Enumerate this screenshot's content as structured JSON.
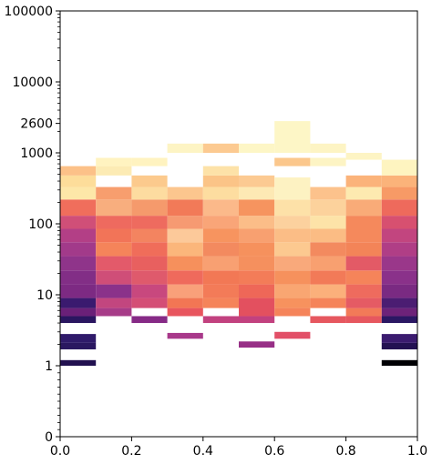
{
  "chart_data": {
    "type": "heatmap",
    "title": "",
    "xlabel": "",
    "ylabel": "",
    "xlim": [
      0.0,
      1.0
    ],
    "ylim": [
      0,
      100000
    ],
    "y_scale": "log-like (0 at bottom, custom ticks)",
    "colormap": "magma",
    "x_ticks": [
      "0.0",
      "0.2",
      "0.4",
      "0.6",
      "0.8",
      "1.0"
    ],
    "y_ticks": [
      "0",
      "1",
      "10",
      "100",
      "1000",
      "2600",
      "10000",
      "100000"
    ],
    "x_bins": [
      0.0,
      0.1,
      0.2,
      0.3,
      0.4,
      0.5,
      0.6,
      0.7,
      0.8,
      0.9,
      1.0
    ],
    "cells": [
      {
        "x0": 0.0,
        "x1": 0.1,
        "y0": 1.0,
        "y1": 1.2,
        "color": "#221150"
      },
      {
        "x0": 0.0,
        "x1": 0.1,
        "y0": 1.7,
        "y1": 2.1,
        "color": "#2a1760"
      },
      {
        "x0": 0.0,
        "x1": 0.1,
        "y0": 2.1,
        "y1": 2.8,
        "color": "#2f1a6a"
      },
      {
        "x0": 0.0,
        "x1": 0.1,
        "y0": 4.0,
        "y1": 5.0,
        "color": "#2a1660"
      },
      {
        "x0": 0.0,
        "x1": 0.1,
        "y0": 5.0,
        "y1": 6.5,
        "color": "#6a2078"
      },
      {
        "x0": 0.0,
        "x1": 0.1,
        "y0": 6.5,
        "y1": 9.0,
        "color": "#3a1a6f"
      },
      {
        "x0": 0.0,
        "x1": 0.1,
        "y0": 9.0,
        "y1": 14,
        "color": "#7d2a83"
      },
      {
        "x0": 0.0,
        "x1": 0.1,
        "y0": 14,
        "y1": 22,
        "color": "#822e86"
      },
      {
        "x0": 0.0,
        "x1": 0.1,
        "y0": 22,
        "y1": 35,
        "color": "#8f348a"
      },
      {
        "x0": 0.0,
        "x1": 0.1,
        "y0": 35,
        "y1": 55,
        "color": "#a23a8a"
      },
      {
        "x0": 0.0,
        "x1": 0.1,
        "y0": 55,
        "y1": 85,
        "color": "#b33f86"
      },
      {
        "x0": 0.0,
        "x1": 0.1,
        "y0": 85,
        "y1": 130,
        "color": "#d04f78"
      },
      {
        "x0": 0.0,
        "x1": 0.1,
        "y0": 130,
        "y1": 220,
        "color": "#f06e5c"
      },
      {
        "x0": 0.0,
        "x1": 0.1,
        "y0": 220,
        "y1": 330,
        "color": "#fde7a8"
      },
      {
        "x0": 0.0,
        "x1": 0.1,
        "y0": 330,
        "y1": 480,
        "color": "#fddd9a"
      },
      {
        "x0": 0.0,
        "x1": 0.1,
        "y0": 480,
        "y1": 650,
        "color": "#fcc188"
      },
      {
        "x0": 0.1,
        "x1": 0.2,
        "y0": 5.0,
        "y1": 6.5,
        "color": "#a73c88"
      },
      {
        "x0": 0.1,
        "x1": 0.2,
        "y0": 6.5,
        "y1": 9.0,
        "color": "#c2467f"
      },
      {
        "x0": 0.1,
        "x1": 0.2,
        "y0": 9.0,
        "y1": 14,
        "color": "#8a328a"
      },
      {
        "x0": 0.1,
        "x1": 0.2,
        "y0": 14,
        "y1": 22,
        "color": "#cf4e78"
      },
      {
        "x0": 0.1,
        "x1": 0.2,
        "y0": 22,
        "y1": 35,
        "color": "#e35a6a"
      },
      {
        "x0": 0.1,
        "x1": 0.2,
        "y0": 35,
        "y1": 55,
        "color": "#f5845a"
      },
      {
        "x0": 0.1,
        "x1": 0.2,
        "y0": 55,
        "y1": 85,
        "color": "#f27458"
      },
      {
        "x0": 0.1,
        "x1": 0.2,
        "y0": 85,
        "y1": 130,
        "color": "#ee6a5f"
      },
      {
        "x0": 0.1,
        "x1": 0.2,
        "y0": 130,
        "y1": 220,
        "color": "#f8ae7e"
      },
      {
        "x0": 0.1,
        "x1": 0.2,
        "y0": 220,
        "y1": 330,
        "color": "#f79e6e"
      },
      {
        "x0": 0.1,
        "x1": 0.2,
        "y0": 480,
        "y1": 650,
        "color": "#fcebb4"
      },
      {
        "x0": 0.1,
        "x1": 0.2,
        "y0": 650,
        "y1": 850,
        "color": "#fff3c0"
      },
      {
        "x0": 0.2,
        "x1": 0.3,
        "y0": 4.0,
        "y1": 5.0,
        "color": "#862a86"
      },
      {
        "x0": 0.2,
        "x1": 0.3,
        "y0": 6.5,
        "y1": 9.0,
        "color": "#d44e76"
      },
      {
        "x0": 0.2,
        "x1": 0.3,
        "y0": 9.0,
        "y1": 14,
        "color": "#c8487e"
      },
      {
        "x0": 0.2,
        "x1": 0.3,
        "y0": 14,
        "y1": 22,
        "color": "#df5a6c"
      },
      {
        "x0": 0.2,
        "x1": 0.3,
        "y0": 22,
        "y1": 35,
        "color": "#e8605f"
      },
      {
        "x0": 0.2,
        "x1": 0.3,
        "y0": 35,
        "y1": 55,
        "color": "#f06d5a"
      },
      {
        "x0": 0.2,
        "x1": 0.3,
        "y0": 55,
        "y1": 85,
        "color": "#f38460"
      },
      {
        "x0": 0.2,
        "x1": 0.3,
        "y0": 85,
        "y1": 130,
        "color": "#ee6b5f"
      },
      {
        "x0": 0.2,
        "x1": 0.3,
        "y0": 130,
        "y1": 220,
        "color": "#f59a6c"
      },
      {
        "x0": 0.2,
        "x1": 0.3,
        "y0": 220,
        "y1": 330,
        "color": "#fddca0"
      },
      {
        "x0": 0.2,
        "x1": 0.3,
        "y0": 330,
        "y1": 480,
        "color": "#fcca8d"
      },
      {
        "x0": 0.2,
        "x1": 0.3,
        "y0": 650,
        "y1": 850,
        "color": "#fff3c0"
      },
      {
        "x0": 0.3,
        "x1": 0.4,
        "y0": 2.4,
        "y1": 2.9,
        "color": "#a8388a"
      },
      {
        "x0": 0.3,
        "x1": 0.4,
        "y0": 5.0,
        "y1": 6.5,
        "color": "#e8555e"
      },
      {
        "x0": 0.3,
        "x1": 0.4,
        "y0": 6.5,
        "y1": 9.0,
        "color": "#f27654"
      },
      {
        "x0": 0.3,
        "x1": 0.4,
        "y0": 9.0,
        "y1": 14,
        "color": "#f9a07a"
      },
      {
        "x0": 0.3,
        "x1": 0.4,
        "y0": 14,
        "y1": 22,
        "color": "#ef6a5c"
      },
      {
        "x0": 0.3,
        "x1": 0.4,
        "y0": 22,
        "y1": 35,
        "color": "#f6905c"
      },
      {
        "x0": 0.3,
        "x1": 0.4,
        "y0": 35,
        "y1": 55,
        "color": "#fbb67b"
      },
      {
        "x0": 0.3,
        "x1": 0.4,
        "y0": 55,
        "y1": 85,
        "color": "#fcc99a"
      },
      {
        "x0": 0.3,
        "x1": 0.4,
        "y0": 85,
        "y1": 130,
        "color": "#f69a72"
      },
      {
        "x0": 0.3,
        "x1": 0.4,
        "y0": 130,
        "y1": 220,
        "color": "#f27a58"
      },
      {
        "x0": 0.3,
        "x1": 0.4,
        "y0": 220,
        "y1": 330,
        "color": "#fcc68e"
      },
      {
        "x0": 0.3,
        "x1": 0.4,
        "y0": 1000,
        "y1": 1350,
        "color": "#fdf4c4"
      },
      {
        "x0": 0.4,
        "x1": 0.5,
        "y0": 4.0,
        "y1": 5.0,
        "color": "#c2417f"
      },
      {
        "x0": 0.4,
        "x1": 0.5,
        "y0": 6.5,
        "y1": 9.0,
        "color": "#f5845a"
      },
      {
        "x0": 0.4,
        "x1": 0.5,
        "y0": 9.0,
        "y1": 14,
        "color": "#f37b58"
      },
      {
        "x0": 0.4,
        "x1": 0.5,
        "y0": 14,
        "y1": 22,
        "color": "#f27855"
      },
      {
        "x0": 0.4,
        "x1": 0.5,
        "y0": 22,
        "y1": 35,
        "color": "#f8a072"
      },
      {
        "x0": 0.4,
        "x1": 0.5,
        "y0": 35,
        "y1": 55,
        "color": "#f38a5f"
      },
      {
        "x0": 0.4,
        "x1": 0.5,
        "y0": 55,
        "y1": 85,
        "color": "#f7945f"
      },
      {
        "x0": 0.4,
        "x1": 0.5,
        "y0": 85,
        "y1": 130,
        "color": "#f9a578"
      },
      {
        "x0": 0.4,
        "x1": 0.5,
        "y0": 130,
        "y1": 220,
        "color": "#fbb98a"
      },
      {
        "x0": 0.4,
        "x1": 0.5,
        "y0": 220,
        "y1": 330,
        "color": "#fddda0"
      },
      {
        "x0": 0.4,
        "x1": 0.5,
        "y0": 330,
        "y1": 480,
        "color": "#fbc487"
      },
      {
        "x0": 0.4,
        "x1": 0.5,
        "y0": 480,
        "y1": 650,
        "color": "#fde2a8"
      },
      {
        "x0": 0.4,
        "x1": 0.5,
        "y0": 1000,
        "y1": 1350,
        "color": "#fcca91"
      },
      {
        "x0": 0.5,
        "x1": 0.6,
        "y0": 1.8,
        "y1": 2.2,
        "color": "#972f86"
      },
      {
        "x0": 0.5,
        "x1": 0.6,
        "y0": 4.0,
        "y1": 5.0,
        "color": "#c2417f"
      },
      {
        "x0": 0.5,
        "x1": 0.6,
        "y0": 5.0,
        "y1": 9.0,
        "color": "#e3505f"
      },
      {
        "x0": 0.5,
        "x1": 0.6,
        "y0": 9.0,
        "y1": 14,
        "color": "#ee6758"
      },
      {
        "x0": 0.5,
        "x1": 0.6,
        "y0": 14,
        "y1": 22,
        "color": "#f37c58"
      },
      {
        "x0": 0.5,
        "x1": 0.6,
        "y0": 22,
        "y1": 35,
        "color": "#f5905e"
      },
      {
        "x0": 0.5,
        "x1": 0.6,
        "y0": 35,
        "y1": 55,
        "color": "#f6915d"
      },
      {
        "x0": 0.5,
        "x1": 0.6,
        "y0": 55,
        "y1": 85,
        "color": "#f8a070"
      },
      {
        "x0": 0.5,
        "x1": 0.6,
        "y0": 85,
        "y1": 130,
        "color": "#fbbd88"
      },
      {
        "x0": 0.5,
        "x1": 0.6,
        "y0": 130,
        "y1": 220,
        "color": "#f6945f"
      },
      {
        "x0": 0.5,
        "x1": 0.6,
        "y0": 220,
        "y1": 330,
        "color": "#fde9b4"
      },
      {
        "x0": 0.5,
        "x1": 0.6,
        "y0": 330,
        "y1": 480,
        "color": "#fcca92"
      },
      {
        "x0": 0.5,
        "x1": 0.6,
        "y0": 1000,
        "y1": 1350,
        "color": "#fdf6c6"
      },
      {
        "x0": 0.6,
        "x1": 0.7,
        "y0": 2.4,
        "y1": 3.0,
        "color": "#e24f67"
      },
      {
        "x0": 0.6,
        "x1": 0.7,
        "y0": 5.0,
        "y1": 6.5,
        "color": "#f5845a"
      },
      {
        "x0": 0.6,
        "x1": 0.7,
        "y0": 6.5,
        "y1": 9.0,
        "color": "#f7925e"
      },
      {
        "x0": 0.6,
        "x1": 0.7,
        "y0": 9.0,
        "y1": 14,
        "color": "#f9a672"
      },
      {
        "x0": 0.6,
        "x1": 0.7,
        "y0": 14,
        "y1": 22,
        "color": "#f6915d"
      },
      {
        "x0": 0.6,
        "x1": 0.7,
        "y0": 22,
        "y1": 35,
        "color": "#f9a97b"
      },
      {
        "x0": 0.6,
        "x1": 0.7,
        "y0": 35,
        "y1": 55,
        "color": "#fcc990"
      },
      {
        "x0": 0.6,
        "x1": 0.7,
        "y0": 55,
        "y1": 85,
        "color": "#fbbd86"
      },
      {
        "x0": 0.6,
        "x1": 0.7,
        "y0": 85,
        "y1": 130,
        "color": "#fcd19e"
      },
      {
        "x0": 0.6,
        "x1": 0.7,
        "y0": 130,
        "y1": 220,
        "color": "#fde1a8"
      },
      {
        "x0": 0.6,
        "x1": 0.7,
        "y0": 220,
        "y1": 450,
        "color": "#fdf2c2"
      },
      {
        "x0": 0.6,
        "x1": 0.7,
        "y0": 650,
        "y1": 850,
        "color": "#fbc78c"
      },
      {
        "x0": 0.6,
        "x1": 0.7,
        "y0": 1000,
        "y1": 2800,
        "color": "#fdf6c6"
      },
      {
        "x0": 0.7,
        "x1": 0.8,
        "y0": 4.0,
        "y1": 5.0,
        "color": "#e6575f"
      },
      {
        "x0": 0.7,
        "x1": 0.8,
        "y0": 6.5,
        "y1": 9.0,
        "color": "#f5845a"
      },
      {
        "x0": 0.7,
        "x1": 0.8,
        "y0": 9.0,
        "y1": 14,
        "color": "#fbb07b"
      },
      {
        "x0": 0.7,
        "x1": 0.8,
        "y0": 14,
        "y1": 22,
        "color": "#f27a58"
      },
      {
        "x0": 0.7,
        "x1": 0.8,
        "y0": 22,
        "y1": 35,
        "color": "#f8a070"
      },
      {
        "x0": 0.7,
        "x1": 0.8,
        "y0": 35,
        "y1": 55,
        "color": "#f38a5f"
      },
      {
        "x0": 0.7,
        "x1": 0.8,
        "y0": 55,
        "y1": 85,
        "color": "#fbbc84"
      },
      {
        "x0": 0.7,
        "x1": 0.8,
        "y0": 85,
        "y1": 130,
        "color": "#fde3a8"
      },
      {
        "x0": 0.7,
        "x1": 0.8,
        "y0": 130,
        "y1": 220,
        "color": "#fcd29c"
      },
      {
        "x0": 0.7,
        "x1": 0.8,
        "y0": 220,
        "y1": 330,
        "color": "#fcc28c"
      },
      {
        "x0": 0.7,
        "x1": 0.8,
        "y0": 650,
        "y1": 850,
        "color": "#fdf4c4"
      },
      {
        "x0": 0.7,
        "x1": 0.8,
        "y0": 1000,
        "y1": 1350,
        "color": "#fdf4c4"
      },
      {
        "x0": 0.8,
        "x1": 0.9,
        "y0": 4.0,
        "y1": 5.0,
        "color": "#e6575f"
      },
      {
        "x0": 0.8,
        "x1": 0.9,
        "y0": 5.0,
        "y1": 6.5,
        "color": "#f27a58"
      },
      {
        "x0": 0.8,
        "x1": 0.9,
        "y0": 6.5,
        "y1": 9.0,
        "color": "#e55b64"
      },
      {
        "x0": 0.8,
        "x1": 0.9,
        "y0": 9.0,
        "y1": 14,
        "color": "#ee6b5e"
      },
      {
        "x0": 0.8,
        "x1": 0.9,
        "y0": 14,
        "y1": 22,
        "color": "#f5845a"
      },
      {
        "x0": 0.8,
        "x1": 0.9,
        "y0": 22,
        "y1": 35,
        "color": "#e35a66"
      },
      {
        "x0": 0.8,
        "x1": 0.9,
        "y0": 35,
        "y1": 55,
        "color": "#f38458"
      },
      {
        "x0": 0.8,
        "x1": 0.9,
        "y0": 55,
        "y1": 130,
        "color": "#f5895c"
      },
      {
        "x0": 0.8,
        "x1": 0.9,
        "y0": 130,
        "y1": 220,
        "color": "#f9ab78"
      },
      {
        "x0": 0.8,
        "x1": 0.9,
        "y0": 220,
        "y1": 330,
        "color": "#fdeab0"
      },
      {
        "x0": 0.8,
        "x1": 0.9,
        "y0": 330,
        "y1": 480,
        "color": "#fbb37a"
      },
      {
        "x0": 0.8,
        "x1": 0.9,
        "y0": 800,
        "y1": 1000,
        "color": "#fdf4c4"
      },
      {
        "x0": 0.9,
        "x1": 1.0,
        "y0": 1.0,
        "y1": 1.2,
        "color": "#000004"
      },
      {
        "x0": 0.9,
        "x1": 1.0,
        "y0": 1.7,
        "y1": 2.1,
        "color": "#231152"
      },
      {
        "x0": 0.9,
        "x1": 1.0,
        "y0": 2.1,
        "y1": 2.8,
        "color": "#3b1b6f"
      },
      {
        "x0": 0.9,
        "x1": 1.0,
        "y0": 4.0,
        "y1": 5.0,
        "color": "#2b1763"
      },
      {
        "x0": 0.9,
        "x1": 1.0,
        "y0": 5.0,
        "y1": 6.5,
        "color": "#6d2279"
      },
      {
        "x0": 0.9,
        "x1": 1.0,
        "y0": 6.5,
        "y1": 9.0,
        "color": "#4b1d72"
      },
      {
        "x0": 0.9,
        "x1": 1.0,
        "y0": 9.0,
        "y1": 14,
        "color": "#7a2a82"
      },
      {
        "x0": 0.9,
        "x1": 1.0,
        "y0": 14,
        "y1": 22,
        "color": "#8a318a"
      },
      {
        "x0": 0.9,
        "x1": 1.0,
        "y0": 22,
        "y1": 35,
        "color": "#9a378a"
      },
      {
        "x0": 0.9,
        "x1": 1.0,
        "y0": 35,
        "y1": 55,
        "color": "#b03e86"
      },
      {
        "x0": 0.9,
        "x1": 1.0,
        "y0": 55,
        "y1": 85,
        "color": "#c2457f"
      },
      {
        "x0": 0.9,
        "x1": 1.0,
        "y0": 85,
        "y1": 130,
        "color": "#d75070"
      },
      {
        "x0": 0.9,
        "x1": 1.0,
        "y0": 130,
        "y1": 220,
        "color": "#ee6a5c"
      },
      {
        "x0": 0.9,
        "x1": 1.0,
        "y0": 220,
        "y1": 330,
        "color": "#f79a66"
      },
      {
        "x0": 0.9,
        "x1": 1.0,
        "y0": 330,
        "y1": 480,
        "color": "#fbb37a"
      },
      {
        "x0": 0.9,
        "x1": 1.0,
        "y0": 480,
        "y1": 800,
        "color": "#fef4c0"
      }
    ]
  }
}
